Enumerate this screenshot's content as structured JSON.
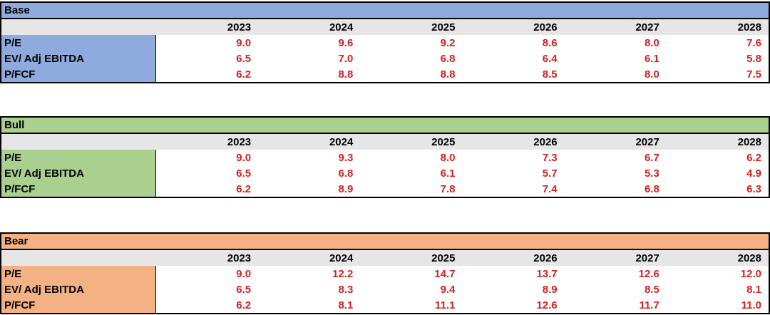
{
  "years": [
    "2023",
    "2024",
    "2025",
    "2026",
    "2027",
    "2028"
  ],
  "scenarios": [
    {
      "title": "Base",
      "accent": "#8FAADC",
      "rows": [
        {
          "label": "P/E",
          "values": [
            "9.0",
            "9.6",
            "9.2",
            "8.6",
            "8.0",
            "7.6"
          ]
        },
        {
          "label": "EV/ Adj EBITDA",
          "values": [
            "6.5",
            "7.0",
            "6.8",
            "6.4",
            "6.1",
            "5.8"
          ]
        },
        {
          "label": "P/FCF",
          "values": [
            "6.2",
            "8.8",
            "8.8",
            "8.5",
            "8.0",
            "7.5"
          ]
        }
      ]
    },
    {
      "title": "Bull",
      "accent": "#A9D08E",
      "rows": [
        {
          "label": "P/E",
          "values": [
            "9.0",
            "9.3",
            "8.0",
            "7.3",
            "6.7",
            "6.2"
          ]
        },
        {
          "label": "EV/ Adj EBITDA",
          "values": [
            "6.5",
            "6.8",
            "6.1",
            "5.7",
            "5.3",
            "4.9"
          ]
        },
        {
          "label": "P/FCF",
          "values": [
            "6.2",
            "8.9",
            "7.8",
            "7.4",
            "6.8",
            "6.3"
          ]
        }
      ]
    },
    {
      "title": "Bear",
      "accent": "#F4B183",
      "rows": [
        {
          "label": "P/E",
          "values": [
            "9.0",
            "12.2",
            "14.7",
            "13.7",
            "12.6",
            "12.0"
          ]
        },
        {
          "label": "EV/ Adj EBITDA",
          "values": [
            "6.5",
            "8.3",
            "9.4",
            "8.9",
            "8.5",
            "8.1"
          ]
        },
        {
          "label": "P/FCF",
          "values": [
            "6.2",
            "8.1",
            "11.1",
            "12.6",
            "11.7",
            "11.0"
          ]
        }
      ]
    }
  ],
  "colors": {
    "year_header_bg": "#E7E6E6",
    "value_text": "#D32020",
    "border": "#000000"
  }
}
